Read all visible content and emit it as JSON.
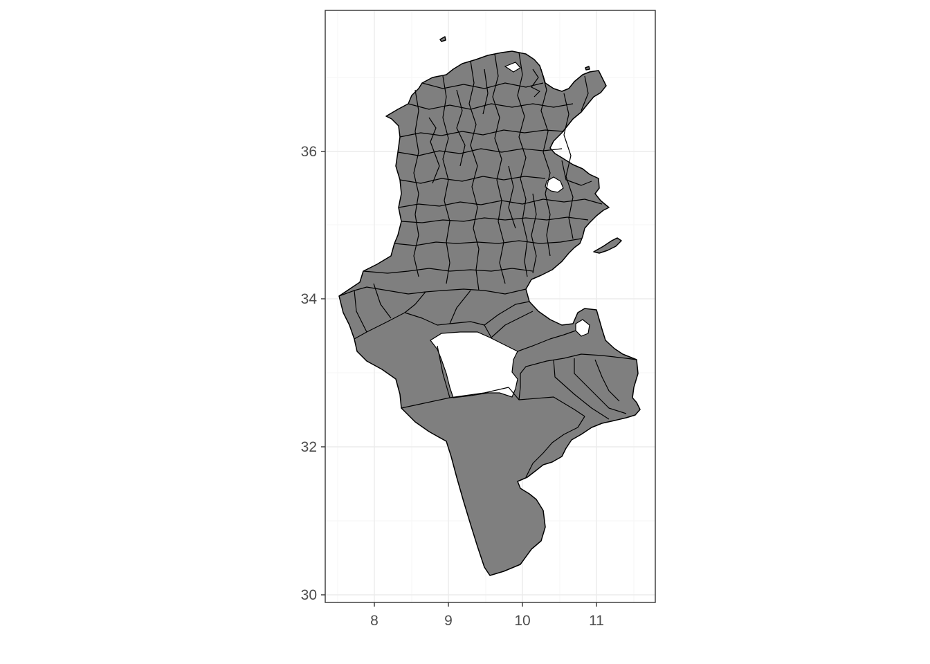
{
  "chart_data": {
    "type": "map",
    "title": "",
    "xlabel": "",
    "ylabel": "",
    "xlim": [
      7.3,
      11.8
    ],
    "ylim": [
      29.9,
      37.9
    ],
    "x_ticks": [
      8,
      9,
      10,
      11
    ],
    "y_ticks": [
      30,
      32,
      34,
      36
    ],
    "x_tick_labels": [
      "8",
      "9",
      "10",
      "11"
    ],
    "y_tick_labels": [
      "30",
      "32",
      "34",
      "36"
    ],
    "grid": true,
    "theme": "bw",
    "fill_color": "#7f7f7f",
    "border_color": "#000000",
    "features": "Tunisia administrative delegations (polygons)"
  }
}
